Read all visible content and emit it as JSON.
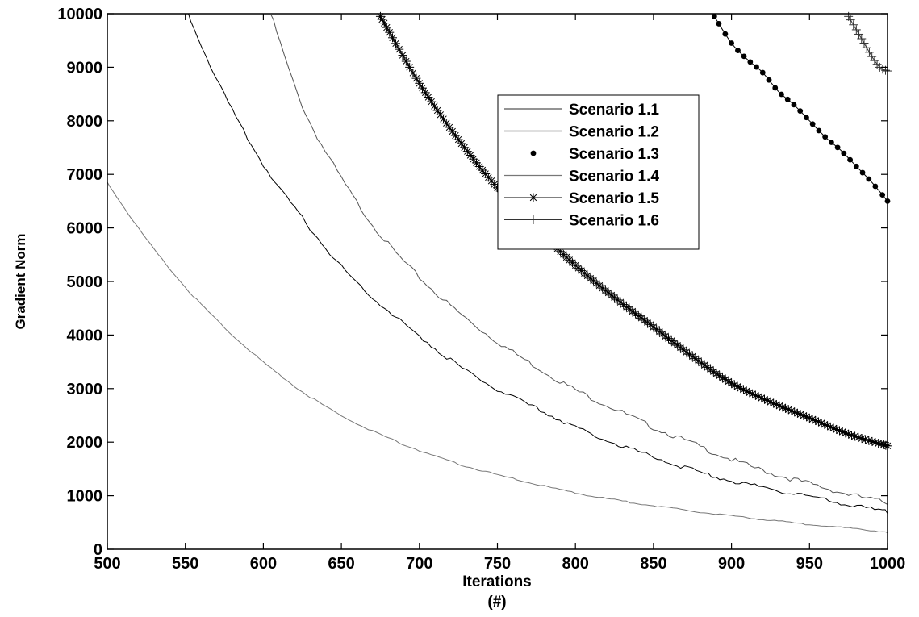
{
  "chart_data": {
    "type": "line",
    "title": "",
    "xlabel": "Iterations",
    "xlabel_line2": "(#)",
    "ylabel": "Gradient Norm",
    "xlim": [
      500,
      1000
    ],
    "ylim": [
      0,
      10000
    ],
    "x_ticks": [
      "500",
      "550",
      "600",
      "650",
      "700",
      "750",
      "800",
      "850",
      "900",
      "950",
      "1000"
    ],
    "y_ticks": [
      "0",
      "1000",
      "2000",
      "3000",
      "4000",
      "5000",
      "6000",
      "7000",
      "8000",
      "9000",
      "10000"
    ],
    "grid": false,
    "legend_position": "upper-center-right",
    "series": [
      {
        "name": "Scenario 1.1",
        "marker": "none",
        "color": "#555555",
        "x": [
          605,
          625,
          650,
          675,
          700,
          725,
          750,
          775,
          800,
          825,
          850,
          875,
          900,
          925,
          950,
          975,
          1000
        ],
        "y": [
          10000,
          8300,
          6950,
          5900,
          5100,
          4450,
          3900,
          3430,
          3000,
          2650,
          2300,
          2000,
          1700,
          1450,
          1250,
          1050,
          900
        ]
      },
      {
        "name": "Scenario 1.2",
        "marker": "none",
        "color": "#000000",
        "x": [
          552,
          575,
          600,
          625,
          650,
          675,
          700,
          725,
          750,
          775,
          800,
          825,
          850,
          875,
          900,
          925,
          950,
          975,
          1000
        ],
        "y": [
          10000,
          8500,
          7200,
          6200,
          5300,
          4600,
          4000,
          3450,
          3000,
          2650,
          2300,
          2000,
          1750,
          1500,
          1300,
          1150,
          1000,
          850,
          720
        ]
      },
      {
        "name": "Scenario 1.3",
        "marker": "dot",
        "color": "#000000",
        "x": [
          889,
          900,
          910,
          920,
          930,
          940,
          950,
          960,
          970,
          980,
          990,
          1000
        ],
        "y": [
          9950,
          9450,
          9150,
          8900,
          8550,
          8300,
          8000,
          7700,
          7450,
          7150,
          6850,
          6500
        ]
      },
      {
        "name": "Scenario 1.4",
        "marker": "none",
        "color": "#777777",
        "x": [
          500,
          525,
          550,
          575,
          600,
          625,
          650,
          675,
          700,
          725,
          750,
          775,
          800,
          825,
          850,
          875,
          900,
          925,
          950,
          975,
          1000
        ],
        "y": [
          6850,
          5800,
          4900,
          4150,
          3500,
          2950,
          2500,
          2150,
          1850,
          1600,
          1400,
          1220,
          1060,
          930,
          820,
          720,
          630,
          550,
          470,
          400,
          330
        ]
      },
      {
        "name": "Scenario 1.5",
        "marker": "star",
        "color": "#000000",
        "x": [
          675,
          700,
          725,
          750,
          775,
          800,
          825,
          850,
          875,
          900,
          925,
          950,
          975,
          1000
        ],
        "y": [
          9950,
          8700,
          7650,
          6750,
          6000,
          5300,
          4700,
          4150,
          3600,
          3100,
          2750,
          2450,
          2150,
          1930
        ]
      },
      {
        "name": "Scenario 1.6",
        "marker": "plus",
        "color": "#333333",
        "x": [
          975,
          980,
          985,
          990,
          995,
          1000
        ],
        "y": [
          9950,
          9700,
          9450,
          9200,
          9000,
          8930
        ]
      }
    ]
  }
}
